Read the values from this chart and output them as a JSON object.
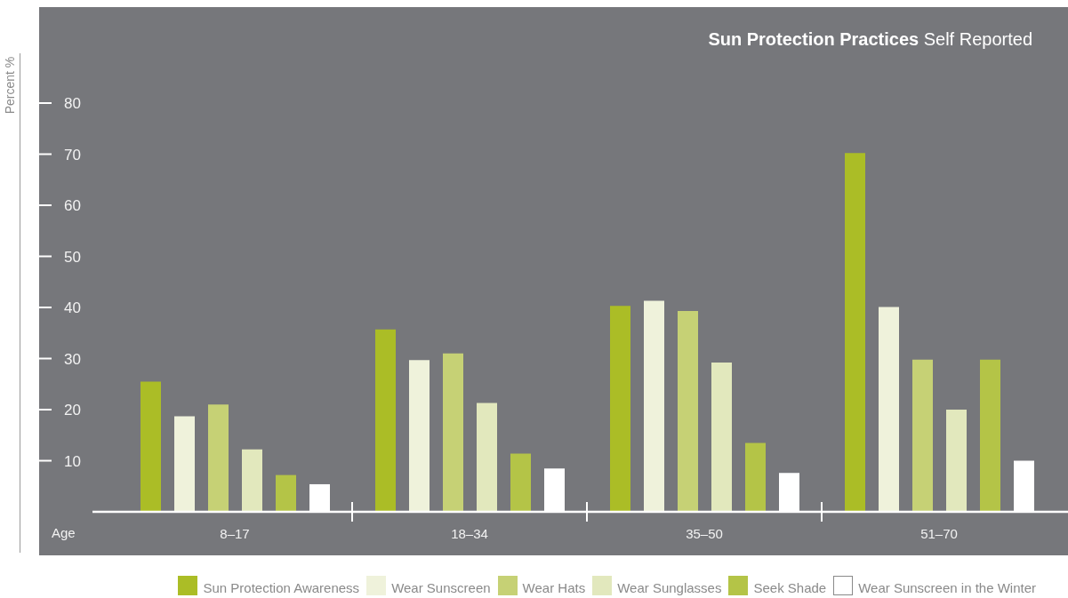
{
  "chart_data": {
    "type": "bar",
    "title": "Sun Protection Practices",
    "subtitle": "Self Reported",
    "xlabel": "Age",
    "ylabel": "Percent %",
    "categories": [
      "8–17",
      "18–34",
      "35–50",
      "51–70"
    ],
    "series": [
      {
        "name": "Sun Protection Awareness",
        "color": "#abbd26",
        "values": [
          25.5,
          35.7,
          40.3,
          70.2
        ]
      },
      {
        "name": "Wear Sunscreen",
        "color": "#eff2db",
        "values": [
          18.7,
          29.7,
          41.3,
          40.1
        ]
      },
      {
        "name": "Wear Hats",
        "color": "#c6d175",
        "values": [
          21,
          31,
          39.3,
          29.8
        ]
      },
      {
        "name": "Wear Sunglasses",
        "color": "#e2e8bd",
        "values": [
          12.2,
          21.3,
          29.2,
          20
        ]
      },
      {
        "name": "Seek Shade",
        "color": "#b4c447",
        "values": [
          7.2,
          11.4,
          13.5,
          29.8
        ]
      },
      {
        "name": "Wear Sunscreen in the Winter",
        "color": "#ffffff",
        "values": [
          5.4,
          8.5,
          7.6,
          10
        ]
      }
    ],
    "ylim": [
      0,
      80
    ],
    "yticks": [
      10,
      20,
      30,
      40,
      50,
      60,
      70,
      80
    ],
    "legend": "bottom"
  }
}
